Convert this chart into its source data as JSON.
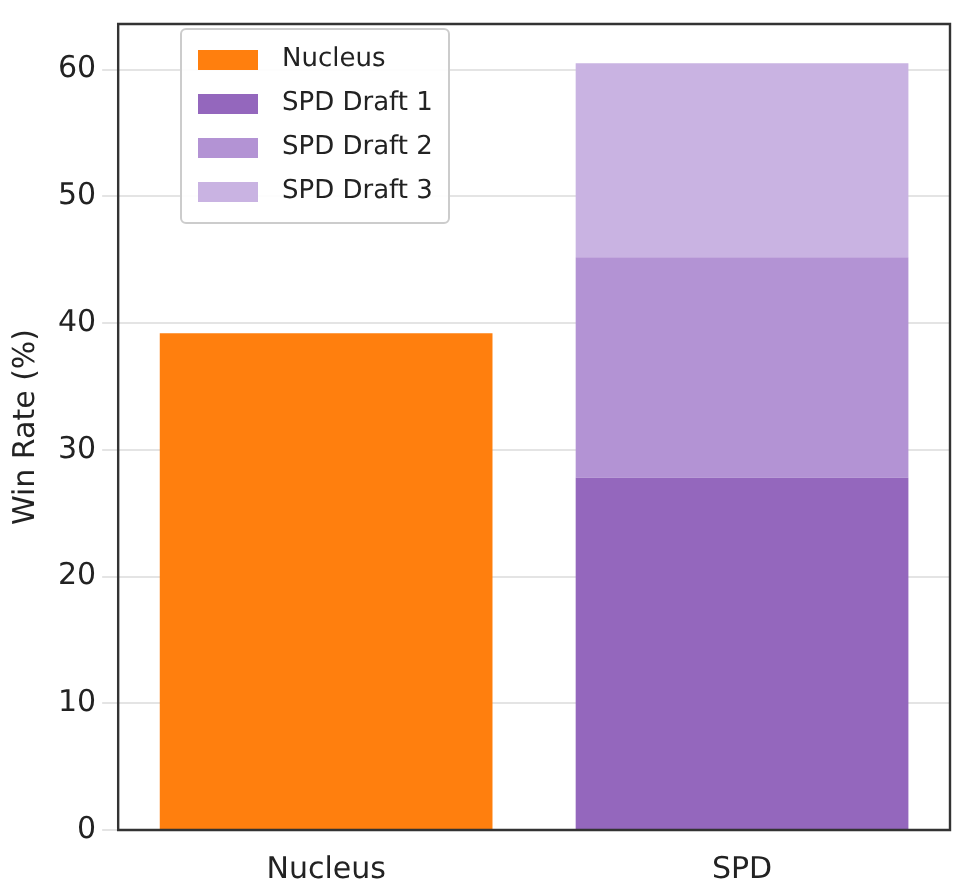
{
  "chart_data": {
    "type": "bar",
    "ylabel": "Win Rate (%)",
    "categories": [
      "Nucleus",
      "SPD"
    ],
    "stacked": true,
    "ylim": [
      0,
      63.6
    ],
    "yticks": [
      0,
      10,
      20,
      30,
      40,
      50,
      60
    ],
    "grid": "y",
    "legend": "top left",
    "series": [
      {
        "name": "Nucleus",
        "color": "#ff7f0e",
        "values": [
          39.2,
          null
        ]
      },
      {
        "name": "SPD Draft 1",
        "color": "#9467bd",
        "values": [
          null,
          27.8
        ]
      },
      {
        "name": "SPD Draft 2",
        "color": "#b393d4",
        "values": [
          null,
          17.4
        ]
      },
      {
        "name": "SPD Draft 3",
        "color": "#c9b3e2",
        "values": [
          null,
          15.3
        ]
      }
    ]
  }
}
